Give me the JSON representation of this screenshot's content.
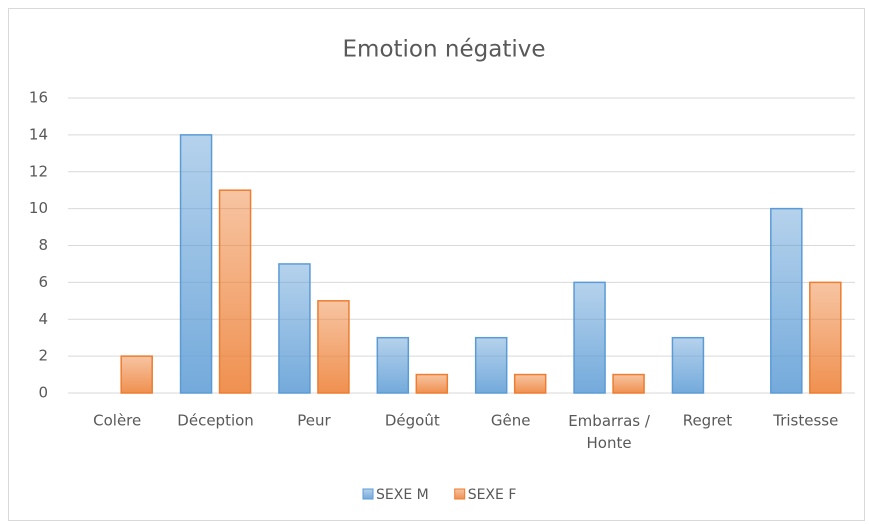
{
  "chart_data": {
    "type": "bar",
    "title": "Emotion négative",
    "categories": [
      "Colère",
      "Déception",
      "Peur",
      "Dégoût",
      "Gêne",
      "Embarras / Honte",
      "Regret",
      "Tristesse"
    ],
    "series": [
      {
        "name": "SEXE M",
        "color": "#5b9bd5",
        "values": [
          0,
          14,
          7,
          3,
          3,
          6,
          3,
          10
        ]
      },
      {
        "name": "SEXE F",
        "color": "#ed7d31",
        "values": [
          2,
          11,
          5,
          1,
          1,
          1,
          0,
          6
        ]
      }
    ],
    "ylim": [
      0,
      16
    ],
    "yticks": [
      0,
      2,
      4,
      6,
      8,
      10,
      12,
      14,
      16
    ],
    "grid": true,
    "legend": "bottom"
  }
}
